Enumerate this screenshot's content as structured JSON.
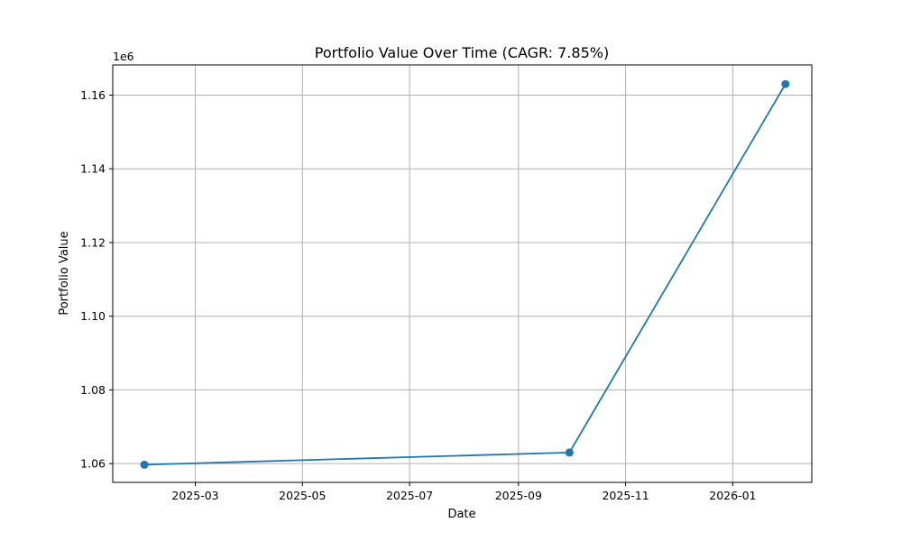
{
  "chart_data": {
    "type": "line",
    "title": "Portfolio Value Over Time (CAGR: 7.85%)",
    "xlabel": "Date",
    "ylabel": "Portfolio Value",
    "y_offset_label": "1e6",
    "x_scale": "date",
    "xlim": [
      "2025-01-13",
      "2026-02-15"
    ],
    "ylim": [
      1054900,
      1168200
    ],
    "x_ticks": [
      {
        "value": "2025-03-01",
        "label": "2025-03"
      },
      {
        "value": "2025-05-01",
        "label": "2025-05"
      },
      {
        "value": "2025-07-01",
        "label": "2025-07"
      },
      {
        "value": "2025-09-01",
        "label": "2025-09"
      },
      {
        "value": "2025-11-01",
        "label": "2025-11"
      },
      {
        "value": "2026-01-01",
        "label": "2026-01"
      }
    ],
    "y_ticks": [
      {
        "value": 1060000,
        "label": "1.06"
      },
      {
        "value": 1080000,
        "label": "1.08"
      },
      {
        "value": 1100000,
        "label": "1.10"
      },
      {
        "value": 1120000,
        "label": "1.12"
      },
      {
        "value": 1140000,
        "label": "1.14"
      },
      {
        "value": 1160000,
        "label": "1.16"
      }
    ],
    "grid": true,
    "legend": "none",
    "series": [
      {
        "color": "#1f77b4",
        "marker": "circle",
        "points": [
          {
            "x": "2025-01-31",
            "y": 1059700
          },
          {
            "x": "2025-09-30",
            "y": 1063000
          },
          {
            "x": "2026-01-31",
            "y": 1163000
          }
        ]
      }
    ]
  }
}
